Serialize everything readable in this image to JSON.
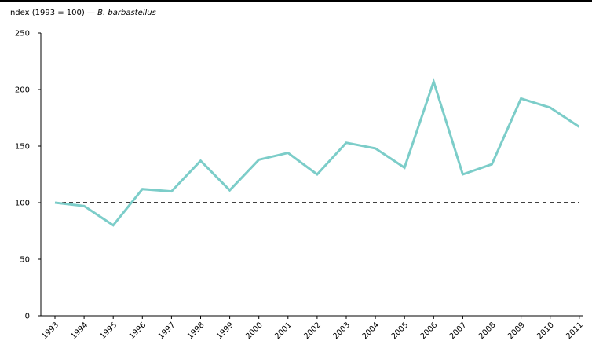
{
  "chart_data": {
    "type": "line",
    "title": "Index (1993 = 100)",
    "title_separator": "—",
    "title_species": "B. barbastellus",
    "xlabel": "",
    "ylabel": "",
    "categories": [
      "1993",
      "1994",
      "1995",
      "1996",
      "1997",
      "1998",
      "1999",
      "2000",
      "2001",
      "2002",
      "2003",
      "2004",
      "2005",
      "2006",
      "2007",
      "2008",
      "2009",
      "2010",
      "2011"
    ],
    "series": [
      {
        "values": [
          100,
          97,
          80,
          112,
          110,
          137,
          111,
          138,
          144,
          125,
          153,
          148,
          131,
          207,
          125,
          134,
          192,
          184,
          167
        ],
        "color": "#7ccdc9"
      }
    ],
    "reference_line": {
      "value": 100,
      "style": "dashed",
      "color": "#000000"
    },
    "ylim": [
      0,
      250
    ],
    "yticks": [
      0,
      50,
      100,
      150,
      200,
      250
    ],
    "grid": false,
    "legend": "none"
  }
}
